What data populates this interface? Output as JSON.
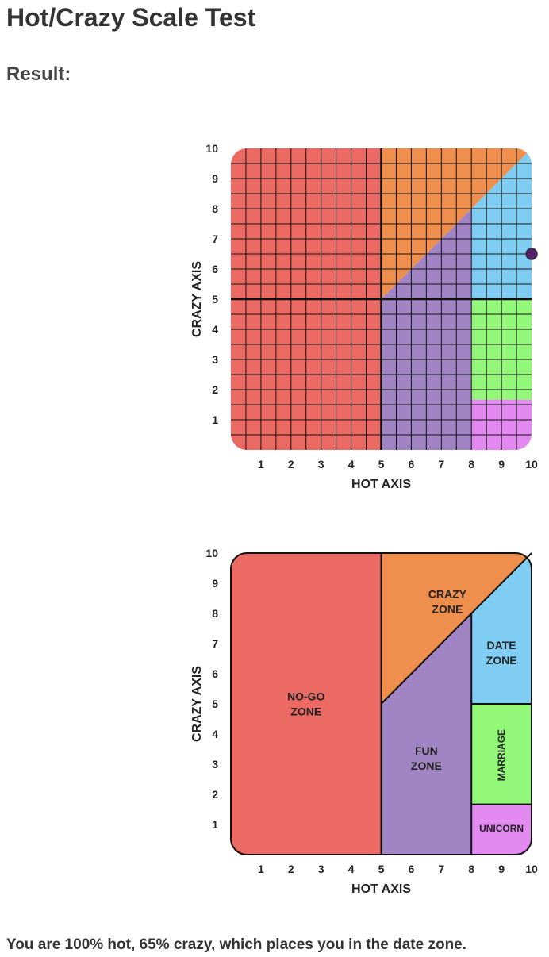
{
  "page": {
    "title": "Hot/Crazy Scale Test",
    "result_label": "Result:",
    "result_text": "You are 100% hot, 65% crazy, which places you in the date zone."
  },
  "colors": {
    "no_go": "#EB6A64",
    "crazy": "#EF8F4E",
    "fun": "#A184C4",
    "date": "#7FCDF2",
    "marriage": "#93F77A",
    "unicorn": "#E28AEF",
    "marker": "#5A1F6B",
    "grid": "#111111"
  },
  "chart_data": [
    {
      "type": "scatter",
      "title": "",
      "xlabel": "HOT AXIS",
      "ylabel": "CRAZY AXIS",
      "xlim": [
        0,
        10
      ],
      "ylim": [
        0,
        10
      ],
      "x_ticks": [
        "1",
        "2",
        "3",
        "4",
        "5",
        "6",
        "7",
        "8",
        "9",
        "10"
      ],
      "y_ticks": [
        "1",
        "2",
        "3",
        "4",
        "5",
        "6",
        "7",
        "8",
        "9",
        "10"
      ],
      "grid": true,
      "points": [
        {
          "x": 10,
          "y": 6.5
        }
      ]
    },
    {
      "type": "area",
      "title": "",
      "xlabel": "HOT AXIS",
      "ylabel": "CRAZY AXIS",
      "xlim": [
        0,
        10
      ],
      "ylim": [
        0,
        10
      ],
      "x_ticks": [
        "1",
        "2",
        "3",
        "4",
        "5",
        "6",
        "7",
        "8",
        "9",
        "10"
      ],
      "y_ticks": [
        "1",
        "2",
        "3",
        "4",
        "5",
        "6",
        "7",
        "8",
        "9",
        "10"
      ],
      "grid": false,
      "zones": [
        {
          "name": "NO-GO ZONE",
          "lines": [
            "NO-GO",
            "ZONE"
          ],
          "color_key": "no_go",
          "label_at": [
            2.5,
            5
          ]
        },
        {
          "name": "CRAZY ZONE",
          "lines": [
            "CRAZY",
            "ZONE"
          ],
          "color_key": "crazy",
          "label_at": [
            7.2,
            8.4
          ]
        },
        {
          "name": "FUN ZONE",
          "lines": [
            "FUN",
            "ZONE"
          ],
          "color_key": "fun",
          "label_at": [
            6.5,
            3.2
          ]
        },
        {
          "name": "DATE ZONE",
          "lines": [
            "DATE",
            "ZONE"
          ],
          "color_key": "date",
          "label_at": [
            9.0,
            6.7
          ]
        },
        {
          "name": "MARRIAGE",
          "lines": [
            "MARRIAGE"
          ],
          "color_key": "marriage",
          "label_at": [
            9.0,
            3.3
          ],
          "vertical": true
        },
        {
          "name": "UNICORN",
          "lines": [
            "UNICORN"
          ],
          "color_key": "unicorn",
          "label_at": [
            9.0,
            0.9
          ]
        }
      ]
    }
  ]
}
